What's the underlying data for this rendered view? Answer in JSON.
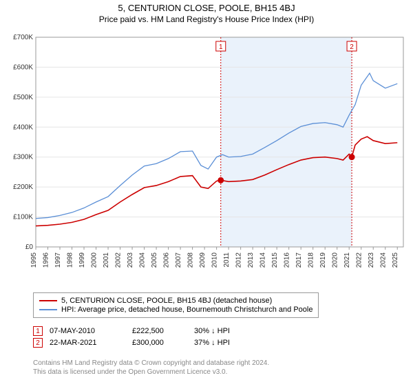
{
  "title": "5, CENTURION CLOSE, POOLE, BH15 4BJ",
  "subtitle": "Price paid vs. HM Land Registry's House Price Index (HPI)",
  "chart": {
    "type": "line",
    "background_color": "#ffffff",
    "plot_border_color": "#999999",
    "grid_color": "#e5e5e5",
    "axis_text_color": "#333333",
    "xlim": [
      1995,
      2025.5
    ],
    "ylim": [
      0,
      700000
    ],
    "ytick_step": 100000,
    "yticks": [
      "£0",
      "£100K",
      "£200K",
      "£300K",
      "£400K",
      "£500K",
      "£600K",
      "£700K"
    ],
    "xticks": [
      "1995",
      "1996",
      "1997",
      "1998",
      "1999",
      "2000",
      "2001",
      "2002",
      "2003",
      "2004",
      "2005",
      "2006",
      "2007",
      "2008",
      "2009",
      "2010",
      "2011",
      "2012",
      "2013",
      "2014",
      "2015",
      "2016",
      "2017",
      "2018",
      "2019",
      "2020",
      "2021",
      "2022",
      "2023",
      "2024",
      "2025"
    ],
    "shade_start": 2010.35,
    "shade_end": 2021.22,
    "shade_color": "#eaf2fb",
    "marker_vline_color": "#cc0000",
    "marker_vline_dash": "2,2",
    "series": [
      {
        "name": "price_paid",
        "label": "5, CENTURION CLOSE, POOLE, BH15 4BJ (detached house)",
        "color": "#cc0000",
        "width": 1.6,
        "data": [
          [
            1995,
            70000
          ],
          [
            1996,
            72000
          ],
          [
            1997,
            76000
          ],
          [
            1998,
            82000
          ],
          [
            1999,
            92000
          ],
          [
            2000,
            108000
          ],
          [
            2001,
            122000
          ],
          [
            2002,
            150000
          ],
          [
            2003,
            175000
          ],
          [
            2004,
            198000
          ],
          [
            2005,
            205000
          ],
          [
            2006,
            218000
          ],
          [
            2007,
            235000
          ],
          [
            2008,
            238000
          ],
          [
            2008.7,
            200000
          ],
          [
            2009.3,
            195000
          ],
          [
            2010,
            220000
          ],
          [
            2010.35,
            222500
          ],
          [
            2011,
            218000
          ],
          [
            2012,
            220000
          ],
          [
            2013,
            225000
          ],
          [
            2014,
            240000
          ],
          [
            2015,
            258000
          ],
          [
            2016,
            275000
          ],
          [
            2017,
            290000
          ],
          [
            2018,
            298000
          ],
          [
            2019,
            300000
          ],
          [
            2020,
            295000
          ],
          [
            2020.5,
            290000
          ],
          [
            2021,
            310000
          ],
          [
            2021.22,
            300000
          ],
          [
            2021.5,
            340000
          ],
          [
            2022,
            360000
          ],
          [
            2022.5,
            368000
          ],
          [
            2023,
            355000
          ],
          [
            2024,
            345000
          ],
          [
            2025,
            348000
          ]
        ]
      },
      {
        "name": "hpi",
        "label": "HPI: Average price, detached house, Bournemouth Christchurch and Poole",
        "color": "#5b8fd6",
        "width": 1.3,
        "data": [
          [
            1995,
            95000
          ],
          [
            1996,
            98000
          ],
          [
            1997,
            105000
          ],
          [
            1998,
            115000
          ],
          [
            1999,
            130000
          ],
          [
            2000,
            150000
          ],
          [
            2001,
            168000
          ],
          [
            2002,
            205000
          ],
          [
            2003,
            240000
          ],
          [
            2004,
            270000
          ],
          [
            2005,
            278000
          ],
          [
            2006,
            295000
          ],
          [
            2007,
            318000
          ],
          [
            2008,
            320000
          ],
          [
            2008.7,
            272000
          ],
          [
            2009.3,
            260000
          ],
          [
            2010,
            300000
          ],
          [
            2010.5,
            308000
          ],
          [
            2011,
            300000
          ],
          [
            2012,
            302000
          ],
          [
            2013,
            310000
          ],
          [
            2014,
            332000
          ],
          [
            2015,
            355000
          ],
          [
            2016,
            380000
          ],
          [
            2017,
            402000
          ],
          [
            2018,
            412000
          ],
          [
            2019,
            415000
          ],
          [
            2020,
            408000
          ],
          [
            2020.5,
            400000
          ],
          [
            2021,
            440000
          ],
          [
            2021.5,
            475000
          ],
          [
            2022,
            540000
          ],
          [
            2022.7,
            580000
          ],
          [
            2023,
            555000
          ],
          [
            2024,
            530000
          ],
          [
            2025,
            545000
          ]
        ]
      }
    ],
    "markers": [
      {
        "id": "1",
        "x": 2010.35,
        "y": 222500,
        "color": "#cc0000"
      },
      {
        "id": "2",
        "x": 2021.22,
        "y": 300000,
        "color": "#cc0000"
      }
    ]
  },
  "legend": {
    "items": [
      {
        "color": "#cc0000",
        "label": "5, CENTURION CLOSE, POOLE, BH15 4BJ (detached house)"
      },
      {
        "color": "#5b8fd6",
        "label": "HPI: Average price, detached house, Bournemouth Christchurch and Poole"
      }
    ]
  },
  "sales": [
    {
      "marker": "1",
      "marker_color": "#cc0000",
      "date": "07-MAY-2010",
      "price": "£222,500",
      "diff": "30% ↓ HPI"
    },
    {
      "marker": "2",
      "marker_color": "#cc0000",
      "date": "22-MAR-2021",
      "price": "£300,000",
      "diff": "37% ↓ HPI"
    }
  ],
  "attribution": {
    "line1": "Contains HM Land Registry data © Crown copyright and database right 2024.",
    "line2": "This data is licensed under the Open Government Licence v3.0."
  }
}
